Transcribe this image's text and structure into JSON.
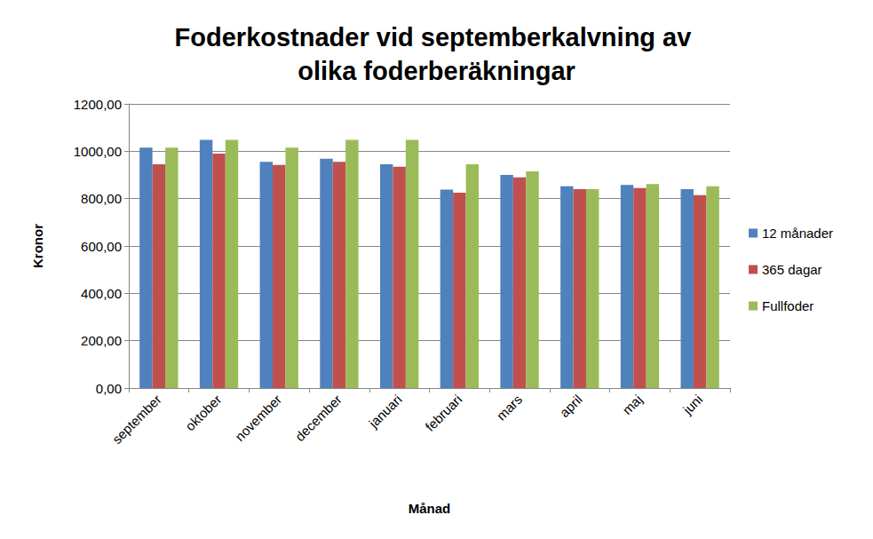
{
  "chart_data": {
    "type": "bar",
    "title": "Foderkostnader vid septemberkalvning av olika foderberäkningar",
    "x_label": "Månad",
    "y_label": "Kronor",
    "categories": [
      "september",
      "oktober",
      "november",
      "december",
      "januari",
      "februari",
      "mars",
      "april",
      "maj",
      "juni"
    ],
    "series": [
      {
        "name": "12 månader",
        "color": "#4f81bd",
        "values": [
          1015,
          1048,
          955,
          968,
          945,
          838,
          900,
          852,
          858,
          840
        ]
      },
      {
        "name": "365 dagar",
        "color": "#c0504d",
        "values": [
          945,
          990,
          942,
          955,
          935,
          825,
          890,
          840,
          845,
          815
        ]
      },
      {
        "name": "Fullfoder",
        "color": "#9bbb59",
        "values": [
          1015,
          1048,
          1015,
          1048,
          1048,
          945,
          915,
          840,
          862,
          852
        ]
      }
    ],
    "ylim": [
      0,
      1200
    ],
    "yticks": [
      {
        "value": 0,
        "label": "0,00"
      },
      {
        "value": 200,
        "label": "200,00"
      },
      {
        "value": 400,
        "label": "400,00"
      },
      {
        "value": 600,
        "label": "600,00"
      },
      {
        "value": 800,
        "label": "800,00"
      },
      {
        "value": 1000,
        "label": "1000,00"
      },
      {
        "value": 1200,
        "label": "1200,00"
      }
    ],
    "grid": true,
    "legend": "right"
  }
}
